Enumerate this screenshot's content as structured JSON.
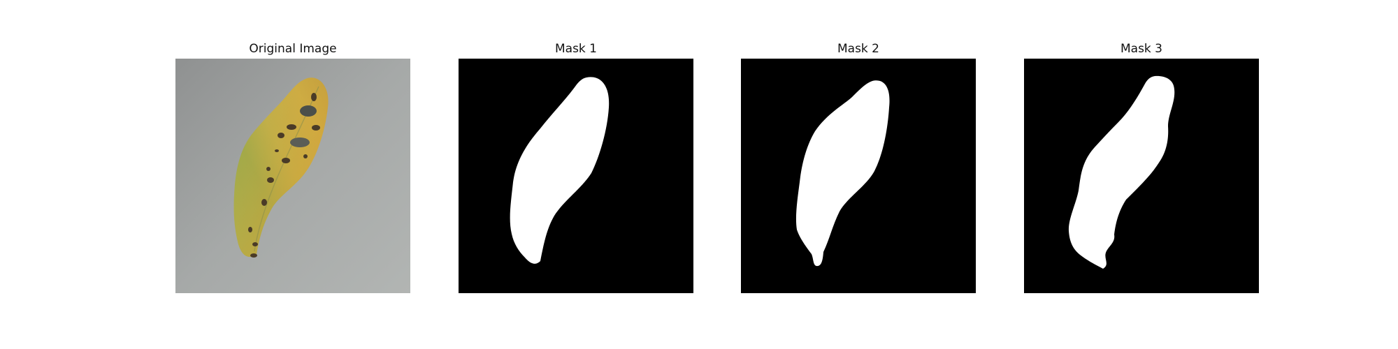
{
  "panels": [
    {
      "title": "Original Image"
    },
    {
      "title": "Mask 1"
    },
    {
      "title": "Mask 2"
    },
    {
      "title": "Mask 3"
    }
  ],
  "colors": {
    "background": "#a3a6a6",
    "leaf_green": "#94a64a",
    "leaf_yellow": "#c9b04a",
    "leaf_orange": "#d6a43a",
    "spot": "#4a3b27",
    "mask_bg": "#000000",
    "mask_fg": "#ffffff"
  }
}
